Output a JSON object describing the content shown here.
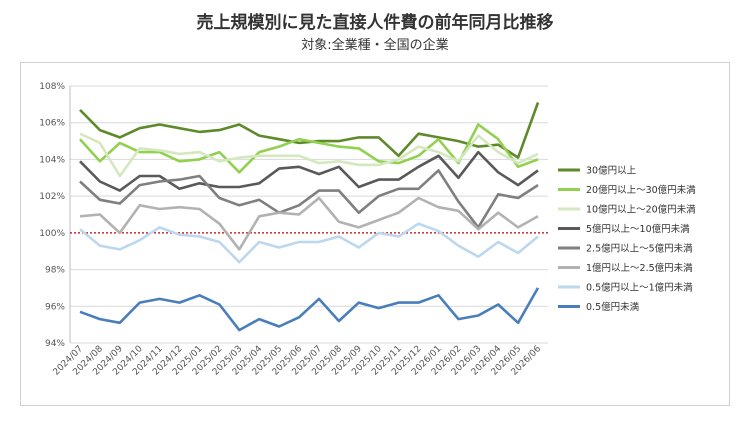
{
  "title": "売上規模別に見た直接人件費の前年同月比推移",
  "subtitle": "対象:全業種・全国の企業",
  "chart_data": {
    "type": "line",
    "title": "売上規模別に見た直接人件費の前年同月比推移",
    "subtitle": "対象:全業種・全国の企業",
    "xlabel": "",
    "ylabel": "",
    "ylim": [
      94,
      108
    ],
    "yticks": [
      "94%",
      "96%",
      "98%",
      "100%",
      "102%",
      "104%",
      "106%",
      "108%"
    ],
    "grid": true,
    "legend_position": "right",
    "reference_line": {
      "y": 100,
      "color": "#c00000",
      "style": "dotted"
    },
    "categories": [
      "2024/07",
      "2024/08",
      "2024/09",
      "2024/10",
      "2024/11",
      "2024/12",
      "2025/01",
      "2025/02",
      "2025/03",
      "2025/04",
      "2025/05",
      "2025/06",
      "2025/07",
      "2025/08",
      "2025/09",
      "2025/10",
      "2025/11",
      "2025/12",
      "2026/01",
      "2026/02",
      "2026/03",
      "2026/04",
      "2026/05",
      "2026/06"
    ],
    "series": [
      {
        "name": "30億円以上",
        "color": "#5e8a2a",
        "values": [
          106.7,
          105.6,
          105.2,
          105.7,
          105.9,
          105.7,
          105.5,
          105.6,
          105.9,
          105.3,
          105.1,
          104.9,
          105.0,
          105.0,
          105.2,
          105.2,
          104.2,
          105.4,
          105.2,
          105.0,
          104.7,
          104.8,
          104.1,
          107.1
        ]
      },
      {
        "name": "20億円以上～30億円未満",
        "color": "#92d050",
        "values": [
          105.1,
          103.9,
          104.9,
          104.4,
          104.4,
          103.9,
          104.0,
          104.4,
          103.3,
          104.4,
          104.7,
          105.1,
          104.9,
          104.7,
          104.6,
          103.9,
          103.8,
          104.2,
          105.1,
          103.8,
          105.9,
          105.1,
          103.6,
          104.0
        ]
      },
      {
        "name": "10億円以上～20億円未満",
        "color": "#d4e8c0",
        "values": [
          105.4,
          104.9,
          103.1,
          104.6,
          104.5,
          104.3,
          104.4,
          103.9,
          104.1,
          104.2,
          104.2,
          104.2,
          103.8,
          103.9,
          103.7,
          103.7,
          104.0,
          104.7,
          104.4,
          103.9,
          105.3,
          104.4,
          103.8,
          104.3
        ]
      },
      {
        "name": "5億円以上～10億円未満",
        "color": "#595959",
        "values": [
          103.9,
          102.8,
          102.3,
          103.1,
          103.1,
          102.4,
          102.7,
          102.5,
          102.5,
          102.7,
          103.5,
          103.6,
          103.2,
          103.6,
          102.5,
          102.9,
          102.9,
          103.6,
          104.2,
          103.0,
          104.4,
          103.3,
          102.6,
          103.4
        ]
      },
      {
        "name": "2.5億円以上～5億円未満",
        "color": "#7f7f7f",
        "values": [
          102.8,
          101.8,
          101.6,
          102.6,
          102.8,
          102.9,
          103.1,
          101.9,
          101.5,
          101.8,
          101.1,
          101.5,
          102.3,
          102.3,
          101.1,
          102.0,
          102.4,
          102.4,
          103.4,
          101.7,
          100.3,
          102.1,
          101.9,
          102.6
        ]
      },
      {
        "name": "1億円以上～2.5億円未満",
        "color": "#b2b2b2",
        "values": [
          100.9,
          101.0,
          100.0,
          101.5,
          101.3,
          101.4,
          101.3,
          100.5,
          99.1,
          100.9,
          101.1,
          101.0,
          101.9,
          100.6,
          100.3,
          100.7,
          101.1,
          101.9,
          101.4,
          101.2,
          100.2,
          101.1,
          100.3,
          100.9
        ]
      },
      {
        "name": "0.5億円以上～1億円未満",
        "color": "#bdd7ee",
        "values": [
          100.2,
          99.3,
          99.1,
          99.6,
          100.3,
          99.9,
          99.8,
          99.5,
          98.4,
          99.5,
          99.2,
          99.5,
          99.5,
          99.8,
          99.2,
          100.0,
          99.8,
          100.5,
          100.1,
          99.3,
          98.7,
          99.5,
          98.9,
          99.8
        ]
      },
      {
        "name": "0.5億円未満",
        "color": "#4a7ebb",
        "values": [
          95.7,
          95.3,
          95.1,
          96.2,
          96.4,
          96.2,
          96.6,
          96.1,
          94.7,
          95.3,
          94.9,
          95.4,
          96.4,
          95.2,
          96.2,
          95.9,
          96.2,
          96.2,
          96.6,
          95.3,
          95.5,
          96.1,
          95.1,
          97.0
        ]
      }
    ]
  }
}
